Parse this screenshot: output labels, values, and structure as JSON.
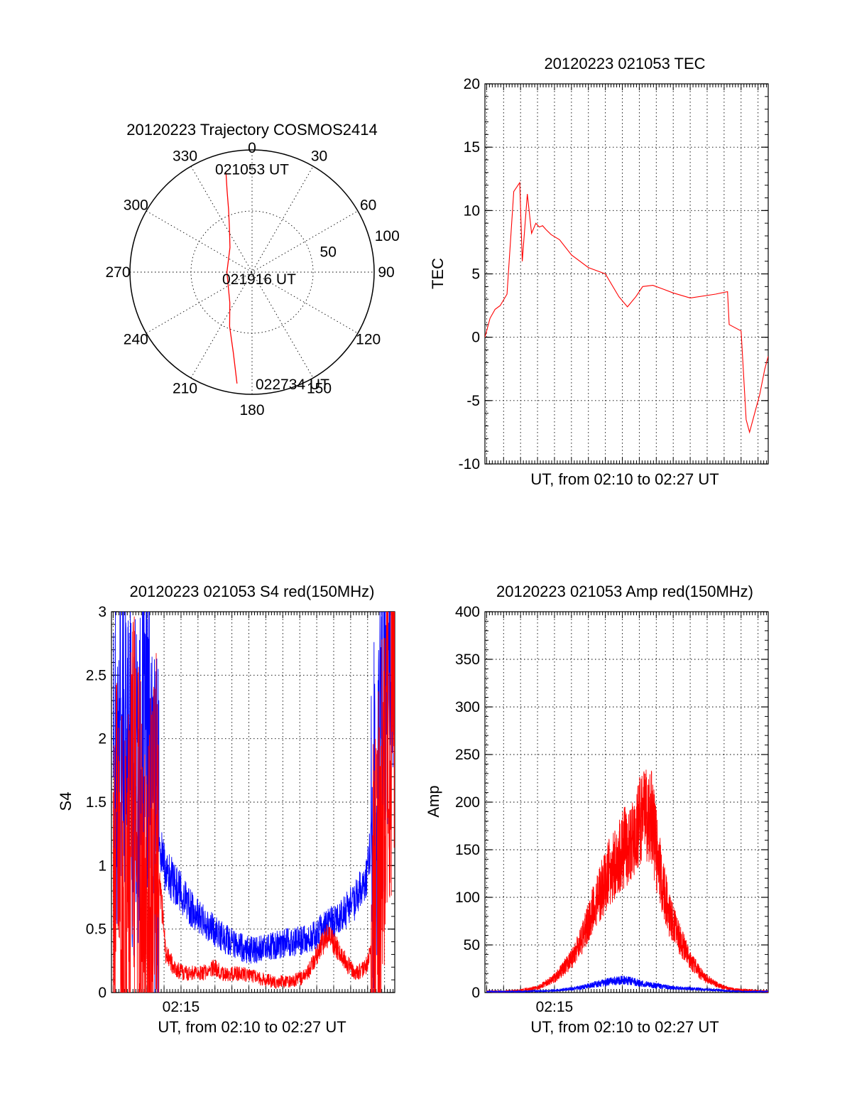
{
  "chart_data": [
    {
      "id": "trajectory",
      "type": "scatter",
      "subtype": "polar",
      "title": "20120223 Trajectory COSMOS2414",
      "angle_labels": [
        "0",
        "30",
        "60",
        "90",
        "120",
        "150",
        "180",
        "210",
        "240",
        "270",
        "300",
        "330"
      ],
      "radius_labels": [
        "50",
        "100"
      ],
      "radius_max": 100,
      "series": [
        {
          "color": "#ff0000",
          "points": [
            {
              "az": 345.3,
              "r": 84.0
            },
            {
              "az": 343.0,
              "r": 70.0
            },
            {
              "az": 339.5,
              "r": 55.0
            },
            {
              "az": 332.5,
              "r": 40.0
            },
            {
              "az": 318.0,
              "r": 27.0
            },
            {
              "az": 270.0,
              "r": 20.6
            },
            {
              "az": 216.0,
              "r": 31.0
            },
            {
              "az": 202.5,
              "r": 48.0
            },
            {
              "az": 193.0,
              "r": 68.0
            },
            {
              "az": 189.5,
              "r": 82.0
            },
            {
              "az": 187.7,
              "r": 92.0
            }
          ]
        }
      ],
      "annotations": [
        {
          "text": "021053 UT",
          "az": 0,
          "r": 84
        },
        {
          "text": "021916 UT",
          "az": 270,
          "r": 8
        },
        {
          "text": "022734 UT",
          "az": 160,
          "r": 92
        }
      ]
    },
    {
      "id": "tec",
      "type": "line",
      "title": "20120223 021053 TEC",
      "xlabel": "UT, from 02:10 to 02:27 UT",
      "ylabel": "TEC",
      "xlim": [
        10.9,
        27.6
      ],
      "ylim": [
        -10,
        20
      ],
      "yticks": [
        "-10",
        "-5",
        "0",
        "5",
        "10",
        "15",
        "20"
      ],
      "grid": true,
      "series": [
        {
          "color": "#ff0000",
          "x": [
            10.9,
            11.2,
            11.5,
            11.8,
            12.2,
            12.6,
            12.95,
            13.1,
            13.4,
            13.65,
            13.9,
            14.1,
            14.3,
            14.5,
            14.8,
            15.3,
            16,
            17,
            18,
            18.8,
            19.3,
            19.8,
            20.2,
            20.8,
            21.4,
            22,
            23,
            24.5,
            25.2,
            25.3,
            26.0,
            26.3,
            26.5,
            26.8,
            27.1,
            27.4,
            27.6
          ],
          "y": [
            0,
            1.5,
            2.2,
            2.5,
            3.4,
            11.5,
            12.2,
            6.0,
            11.3,
            8.2,
            9.0,
            8.7,
            8.8,
            8.5,
            8.1,
            7.7,
            6.5,
            5.5,
            5.0,
            3.2,
            2.4,
            3.2,
            4.0,
            4.1,
            3.8,
            3.5,
            3.1,
            3.4,
            3.6,
            1.0,
            0.5,
            -6.5,
            -7.5,
            -6.0,
            -4.5,
            -2.5,
            -1.5
          ]
        }
      ]
    },
    {
      "id": "s4",
      "type": "line",
      "title": "20120223 021053 S4 red(150MHz)",
      "xlabel": "UT, from 02:10 to 02:27 UT",
      "ylabel": "S4",
      "xlim": [
        10.9,
        27.6
      ],
      "ylim": [
        0,
        3
      ],
      "yticks": [
        "0",
        "0.5",
        "1",
        "1.5",
        "2",
        "2.5",
        "3"
      ],
      "xticks": [
        {
          "value": 15,
          "label": "02:15"
        }
      ],
      "grid": true,
      "series": [
        {
          "color": "#0000ff",
          "x": [
            11.0,
            11.6,
            12.3,
            12.9,
            13.5,
            14.1,
            14.7,
            15.2,
            15.8,
            16.4,
            17.0,
            17.6,
            18.2,
            18.8,
            19.4,
            20.0,
            20.6,
            21.2,
            21.8,
            22.4,
            23.0,
            23.6,
            24.2,
            24.8,
            25.4,
            26.0,
            26.5,
            27.0,
            27.6
          ],
          "y": [
            1.7,
            2.2,
            1.6,
            2.0,
            1.3,
            0.95,
            0.85,
            0.75,
            0.62,
            0.55,
            0.48,
            0.42,
            0.38,
            0.34,
            0.33,
            0.36,
            0.38,
            0.39,
            0.4,
            0.42,
            0.46,
            0.52,
            0.58,
            0.65,
            0.75,
            0.95,
            1.5,
            2.3,
            2.7
          ]
        },
        {
          "color": "#ff0000",
          "x": [
            11.0,
            11.6,
            12.3,
            12.9,
            13.5,
            14.1,
            14.7,
            15.2,
            15.8,
            16.4,
            17.0,
            17.6,
            18.2,
            18.8,
            19.4,
            20.0,
            20.6,
            21.2,
            21.8,
            22.4,
            23.0,
            23.6,
            24.2,
            24.8,
            25.4,
            26.0,
            26.5,
            27.0,
            27.6
          ],
          "y": [
            1.2,
            0.5,
            1.5,
            0.2,
            1.3,
            0.3,
            0.18,
            0.15,
            0.15,
            0.16,
            0.2,
            0.14,
            0.15,
            0.14,
            0.12,
            0.1,
            0.08,
            0.09,
            0.1,
            0.13,
            0.3,
            0.45,
            0.35,
            0.22,
            0.15,
            0.22,
            0.5,
            1.8,
            2.5
          ]
        }
      ]
    },
    {
      "id": "amp",
      "type": "line",
      "title": "20120223 021053 Amp red(150MHz)",
      "xlabel": "UT, from 02:10 to 02:27 UT",
      "ylabel": "Amp",
      "xlim": [
        10.9,
        27.6
      ],
      "ylim": [
        0,
        400
      ],
      "yticks": [
        "0",
        "50",
        "100",
        "150",
        "200",
        "250",
        "300",
        "350",
        "400"
      ],
      "xticks": [
        {
          "value": 15,
          "label": "02:15"
        }
      ],
      "grid": true,
      "series": [
        {
          "color": "#ff0000",
          "x": [
            11.0,
            12.0,
            13.0,
            14.0,
            15.0,
            16.0,
            16.6,
            17.2,
            17.7,
            18.2,
            18.7,
            19.2,
            19.7,
            20.1,
            20.4,
            20.7,
            21.0,
            21.4,
            21.8,
            22.4,
            23.0,
            23.6,
            24.2,
            24.6,
            25.0,
            25.6,
            26.5,
            27.6
          ],
          "y": [
            1,
            1,
            2,
            5,
            15,
            35,
            55,
            85,
            105,
            125,
            140,
            155,
            165,
            180,
            190,
            185,
            150,
            110,
            80,
            55,
            35,
            20,
            12,
            8,
            5,
            3,
            2,
            1
          ]
        },
        {
          "color": "#0000ff",
          "x": [
            11.0,
            13.0,
            15.0,
            16.5,
            17.5,
            18.5,
            19.2,
            20.0,
            21.0,
            22.0,
            23.0,
            24.0,
            25.0,
            26.0,
            27.6
          ],
          "y": [
            1,
            1,
            2,
            5,
            9,
            12,
            13,
            10,
            7,
            5,
            4,
            3,
            2,
            1,
            1
          ]
        }
      ]
    }
  ]
}
